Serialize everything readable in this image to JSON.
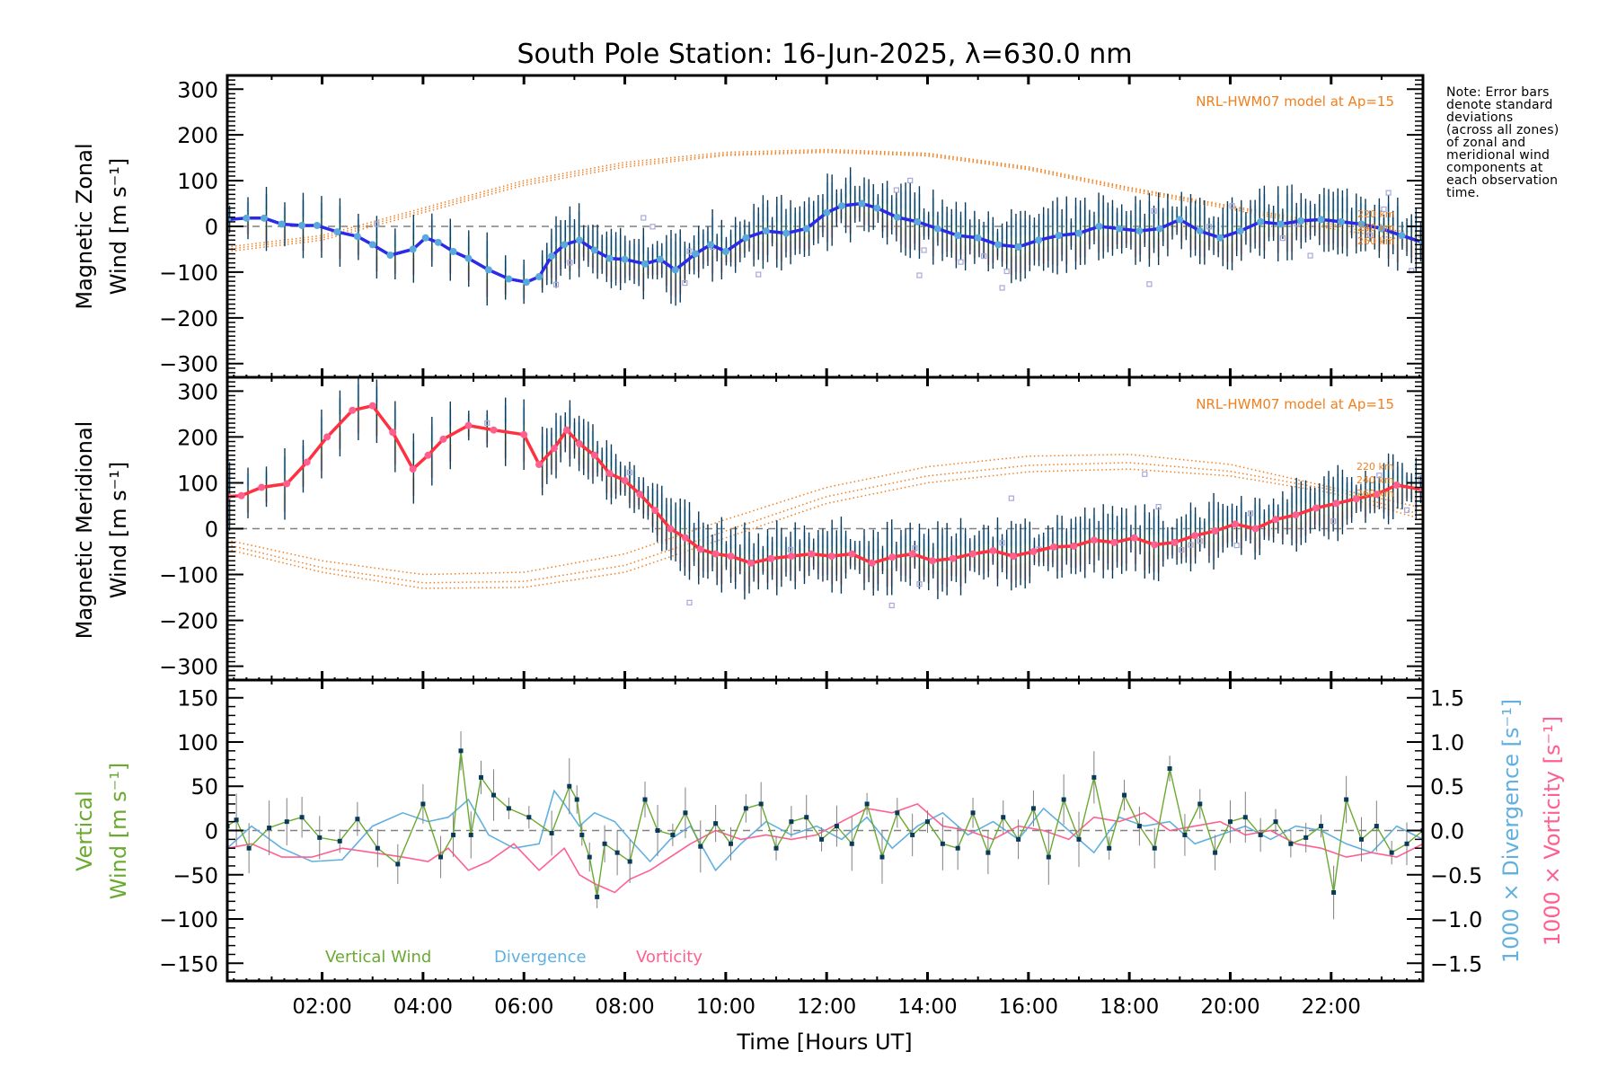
{
  "title": "South Pole Station: 16-Jun-2025, λ=630.0 nm",
  "note": "Note: Error bars\ndenote standard\ndeviations\n(across all zones)\nof zonal and\nmeridional wind\ncomponents at\neach observation\ntime.",
  "chart_data": [
    {
      "id": "zonal",
      "type": "line",
      "title": "",
      "ylabel_line1": "Magnetic Zonal",
      "ylabel_line2": "Wind [m s⁻¹]",
      "xlabel": "",
      "xlim_hours": [
        0.12,
        23.82
      ],
      "ylim": [
        -330,
        330
      ],
      "yticks": [
        -300,
        -200,
        -100,
        0,
        100,
        200,
        300
      ],
      "zero_line": "dashed",
      "model_label": "NRL-HWM07 model at Ap=15",
      "model_altitude_labels": [
        "220 km",
        "240 km",
        "260 km"
      ],
      "colors": {
        "mean_line": "#2a2ae8",
        "mean_marker": "#5aa8dc",
        "error_bar": "#0a3a5a",
        "model": "#f08020",
        "zone_points": "#a8a8d8"
      },
      "series": [
        {
          "name": "Zonal wind (mean)",
          "x": [
            0.12,
            0.5,
            0.85,
            1.2,
            1.6,
            1.9,
            2.3,
            2.7,
            3.0,
            3.35,
            3.8,
            4.05,
            4.3,
            4.6,
            4.9,
            5.3,
            5.7,
            6.05,
            6.3,
            6.55,
            6.8,
            7.1,
            7.4,
            7.7,
            8.0,
            8.4,
            8.7,
            9.0,
            9.4,
            9.7,
            10.0,
            10.4,
            10.8,
            11.2,
            11.6,
            12.0,
            12.3,
            12.7,
            13.0,
            13.4,
            13.8,
            14.2,
            14.6,
            15.0,
            15.4,
            15.8,
            16.2,
            16.6,
            17.0,
            17.4,
            17.8,
            18.2,
            18.6,
            19.0,
            19.4,
            19.8,
            20.2,
            20.6,
            21.0,
            21.4,
            21.8,
            22.2,
            22.6,
            23.0,
            23.4,
            23.82
          ],
          "y": [
            15,
            18,
            18,
            5,
            2,
            2,
            -12,
            -22,
            -40,
            -63,
            -50,
            -25,
            -35,
            -55,
            -70,
            -95,
            -115,
            -122,
            -110,
            -65,
            -40,
            -30,
            -52,
            -70,
            -72,
            -82,
            -72,
            -95,
            -60,
            -40,
            -55,
            -25,
            -10,
            -15,
            -5,
            30,
            45,
            50,
            40,
            20,
            10,
            -5,
            -20,
            -25,
            -40,
            -45,
            -30,
            -20,
            -15,
            0,
            -5,
            -10,
            -5,
            15,
            -10,
            -25,
            -10,
            10,
            5,
            12,
            15,
            10,
            5,
            -5,
            -20,
            -35
          ]
        },
        {
          "name": "HWM07 220 km",
          "x": [
            0.12,
            2,
            4,
            6,
            8,
            10,
            12,
            14,
            16,
            18,
            20,
            22,
            23.82
          ],
          "y": [
            -45,
            -20,
            40,
            100,
            140,
            162,
            168,
            160,
            130,
            85,
            45,
            5,
            -15
          ]
        },
        {
          "name": "HWM07 240 km",
          "x": [
            0.12,
            2,
            4,
            6,
            8,
            10,
            12,
            14,
            16,
            18,
            20,
            22,
            23.82
          ],
          "y": [
            -50,
            -25,
            35,
            95,
            135,
            158,
            165,
            157,
            127,
            82,
            42,
            0,
            -25
          ]
        },
        {
          "name": "HWM07 260 km",
          "x": [
            0.12,
            2,
            4,
            6,
            8,
            10,
            12,
            14,
            16,
            18,
            20,
            22,
            23.82
          ],
          "y": [
            -55,
            -30,
            30,
            90,
            130,
            155,
            162,
            154,
            124,
            78,
            38,
            -5,
            -35
          ]
        }
      ]
    },
    {
      "id": "meridional",
      "type": "line",
      "title": "",
      "ylabel_line1": "Magnetic Meridional",
      "ylabel_line2": "Wind [m s⁻¹]",
      "xlabel": "",
      "xlim_hours": [
        0.12,
        23.82
      ],
      "ylim": [
        -330,
        330
      ],
      "yticks": [
        -300,
        -200,
        -100,
        0,
        100,
        200,
        300
      ],
      "zero_line": "dashed",
      "model_label": "NRL-HWM07 model at Ap=15",
      "model_altitude_labels": [
        "220 km",
        "240 km",
        "260 km"
      ],
      "colors": {
        "mean_line": "#ff3040",
        "mean_marker": "#ff6090",
        "error_bar": "#0a3a5a",
        "model": "#f08020",
        "zone_points": "#a8a8d8"
      },
      "series": [
        {
          "name": "Meridional wind (mean)",
          "x": [
            0.12,
            0.4,
            0.8,
            1.3,
            1.7,
            2.1,
            2.6,
            3.0,
            3.4,
            3.8,
            4.1,
            4.4,
            4.9,
            5.4,
            6.0,
            6.3,
            6.6,
            6.85,
            7.1,
            7.4,
            7.7,
            8.0,
            8.3,
            8.6,
            8.9,
            9.2,
            9.5,
            9.8,
            10.1,
            10.5,
            10.9,
            11.3,
            11.7,
            12.1,
            12.5,
            12.9,
            13.3,
            13.7,
            14.1,
            14.5,
            14.9,
            15.3,
            15.7,
            16.1,
            16.5,
            16.9,
            17.3,
            17.7,
            18.1,
            18.5,
            18.9,
            19.3,
            19.7,
            20.1,
            20.5,
            20.9,
            21.3,
            21.7,
            22.1,
            22.5,
            22.9,
            23.3,
            23.82
          ],
          "y": [
            70,
            72,
            90,
            98,
            145,
            200,
            258,
            268,
            210,
            130,
            160,
            195,
            225,
            215,
            205,
            140,
            175,
            215,
            185,
            160,
            120,
            105,
            75,
            40,
            0,
            -20,
            -45,
            -55,
            -60,
            -75,
            -65,
            -60,
            -55,
            -60,
            -55,
            -75,
            -62,
            -55,
            -70,
            -65,
            -55,
            -48,
            -60,
            -50,
            -40,
            -38,
            -25,
            -30,
            -20,
            -35,
            -30,
            -15,
            -5,
            10,
            0,
            20,
            30,
            45,
            55,
            65,
            75,
            95,
            85
          ]
        },
        {
          "name": "HWM07 220 km",
          "x": [
            0.12,
            2,
            4,
            6,
            8,
            10,
            12,
            14,
            16,
            18,
            20,
            22,
            23.82
          ],
          "y": [
            -25,
            -70,
            -100,
            -95,
            -55,
            20,
            90,
            135,
            158,
            162,
            140,
            90,
            45
          ]
        },
        {
          "name": "HWM07 240 km",
          "x": [
            0.12,
            2,
            4,
            6,
            8,
            10,
            12,
            14,
            16,
            18,
            20,
            22,
            23.82
          ],
          "y": [
            -35,
            -85,
            -118,
            -115,
            -80,
            -5,
            70,
            115,
            138,
            144,
            125,
            85,
            30
          ]
        },
        {
          "name": "HWM07 260 km",
          "x": [
            0.12,
            2,
            4,
            6,
            8,
            10,
            12,
            14,
            16,
            18,
            20,
            22,
            23.82
          ],
          "y": [
            -45,
            -95,
            -130,
            -128,
            -95,
            -20,
            55,
            100,
            124,
            130,
            115,
            78,
            20
          ]
        }
      ]
    },
    {
      "id": "vertical",
      "type": "line",
      "title": "",
      "ylabel_line1": "Vertical",
      "ylabel_line2": "Wind [m s⁻¹]",
      "ylabel_right1": "1000 × Divergence [s⁻¹]",
      "ylabel_right2": "1000 × Vorticity [s⁻¹]",
      "xlabel": "Time [Hours UT]",
      "xlim_hours": [
        0.12,
        23.82
      ],
      "xticks": [
        "02:00",
        "04:00",
        "06:00",
        "08:00",
        "10:00",
        "12:00",
        "14:00",
        "16:00",
        "18:00",
        "20:00",
        "22:00"
      ],
      "ylim": [
        -170,
        170
      ],
      "yticks": [
        -150,
        -100,
        -50,
        0,
        50,
        100,
        150
      ],
      "ylim_right": [
        -1.7,
        1.7
      ],
      "yticks_right": [
        "-1.5",
        "-1.0",
        "-0.5",
        "0.0",
        "0.5",
        "1.0",
        "1.5"
      ],
      "zero_line": "dashed",
      "legend": [
        "Vertical Wind",
        "Divergence",
        "Vorticity"
      ],
      "legend_placement": "bottom-left",
      "colors": {
        "vertical": "#6aaa30",
        "divergence": "#60b0e0",
        "vorticity": "#ff6090",
        "marker": "#0a3a5a",
        "error_bar": "#808080"
      },
      "series": [
        {
          "name": "Vertical Wind",
          "axis": "left",
          "x": [
            0.12,
            0.3,
            0.55,
            0.95,
            1.3,
            1.6,
            1.95,
            2.35,
            2.7,
            3.1,
            3.5,
            4.0,
            4.35,
            4.6,
            4.75,
            4.95,
            5.15,
            5.4,
            5.7,
            6.1,
            6.55,
            6.9,
            7.05,
            7.15,
            7.3,
            7.45,
            7.6,
            7.85,
            8.1,
            8.4,
            8.65,
            8.95,
            9.2,
            9.5,
            9.8,
            10.1,
            10.4,
            10.7,
            11.0,
            11.3,
            11.6,
            11.9,
            12.2,
            12.5,
            12.8,
            13.1,
            13.4,
            13.7,
            14.0,
            14.3,
            14.6,
            14.9,
            15.2,
            15.5,
            15.8,
            16.1,
            16.4,
            16.7,
            17.0,
            17.3,
            17.6,
            17.9,
            18.2,
            18.5,
            18.8,
            19.1,
            19.4,
            19.7,
            20.0,
            20.3,
            20.6,
            20.9,
            21.2,
            21.5,
            21.8,
            22.05,
            22.3,
            22.6,
            22.9,
            23.2,
            23.5,
            23.82
          ],
          "y": [
            5,
            12,
            -20,
            3,
            10,
            15,
            -8,
            -12,
            13,
            -20,
            -38,
            30,
            -30,
            -5,
            90,
            -5,
            60,
            40,
            25,
            15,
            -3,
            50,
            35,
            -5,
            -30,
            -75,
            -15,
            -25,
            -35,
            35,
            0,
            -5,
            20,
            -18,
            8,
            -15,
            25,
            30,
            -20,
            10,
            15,
            -10,
            5,
            -15,
            30,
            -30,
            20,
            -5,
            10,
            -15,
            -20,
            20,
            -25,
            15,
            -10,
            25,
            -30,
            35,
            -10,
            60,
            -20,
            40,
            5,
            -20,
            70,
            -5,
            30,
            -25,
            10,
            15,
            -5,
            10,
            -15,
            -8,
            5,
            -70,
            35,
            -10,
            5,
            -25,
            -15,
            0
          ]
        },
        {
          "name": "Divergence",
          "axis": "right",
          "x": [
            0.12,
            0.6,
            1.2,
            1.8,
            2.4,
            3.0,
            3.6,
            4.1,
            4.5,
            4.9,
            5.3,
            5.8,
            6.3,
            6.6,
            6.8,
            7.1,
            7.4,
            7.8,
            8.1,
            8.5,
            8.9,
            9.3,
            9.8,
            10.3,
            10.8,
            11.3,
            11.8,
            12.3,
            12.8,
            13.3,
            13.8,
            14.3,
            14.8,
            15.3,
            15.8,
            16.3,
            16.8,
            17.3,
            17.8,
            18.3,
            18.8,
            19.3,
            19.8,
            20.3,
            20.8,
            21.3,
            21.8,
            22.3,
            22.8,
            23.3,
            23.82
          ],
          "y": [
            -0.2,
            0.05,
            -0.2,
            -0.35,
            -0.33,
            0.05,
            0.2,
            0.1,
            0.15,
            0.35,
            -0.05,
            -0.2,
            -0.15,
            0.45,
            0.3,
            0.05,
            0.2,
            0.1,
            -0.1,
            -0.35,
            -0.1,
            0.05,
            -0.45,
            -0.15,
            0.1,
            -0.05,
            0.05,
            -0.1,
            0.15,
            -0.2,
            0.05,
            0.2,
            -0.05,
            0.1,
            -0.1,
            0.25,
            0.0,
            -0.25,
            0.15,
            0.05,
            0.1,
            -0.15,
            -0.05,
            0.05,
            -0.1,
            0.05,
            0.0,
            -0.15,
            -0.25,
            0.05,
            -0.1
          ]
        },
        {
          "name": "Vorticity",
          "axis": "right",
          "x": [
            0.12,
            0.6,
            1.2,
            1.8,
            2.4,
            3.0,
            3.6,
            4.1,
            4.5,
            4.9,
            5.3,
            5.8,
            6.3,
            6.6,
            6.8,
            7.1,
            7.4,
            7.8,
            8.1,
            8.5,
            8.9,
            9.3,
            9.8,
            10.3,
            10.8,
            11.3,
            11.8,
            12.3,
            12.8,
            13.3,
            13.8,
            14.3,
            14.8,
            15.3,
            15.8,
            16.3,
            16.8,
            17.3,
            17.8,
            18.3,
            18.8,
            19.3,
            19.8,
            20.3,
            20.8,
            21.3,
            21.8,
            22.3,
            22.8,
            23.3,
            23.82
          ],
          "y": [
            -0.2,
            -0.15,
            -0.3,
            -0.3,
            -0.2,
            -0.25,
            -0.3,
            -0.35,
            -0.2,
            -0.45,
            -0.35,
            -0.15,
            -0.45,
            -0.3,
            -0.2,
            -0.5,
            -0.6,
            -0.7,
            -0.55,
            -0.45,
            -0.3,
            -0.15,
            0.0,
            -0.1,
            -0.05,
            -0.1,
            -0.05,
            0.1,
            0.25,
            0.2,
            0.3,
            0.05,
            0.0,
            -0.1,
            0.05,
            0.0,
            -0.1,
            0.15,
            0.1,
            0.2,
            0.0,
            0.05,
            0.1,
            -0.05,
            0.0,
            -0.15,
            -0.2,
            -0.3,
            -0.25,
            -0.3,
            -0.15
          ]
        }
      ]
    }
  ]
}
